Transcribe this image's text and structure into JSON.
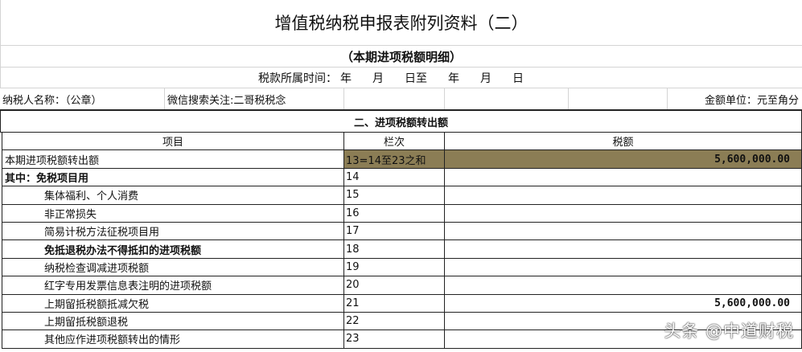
{
  "title": "增值税纳税申报表附列资料（二）",
  "subtitle": "（本期进项税额明细）",
  "period": {
    "label": "税款所属时间：",
    "parts": [
      "年",
      "月",
      "日至",
      "年",
      "月",
      "日"
    ]
  },
  "taxpayer": {
    "name_label": "纳税人名称：（公章）",
    "note": "微信搜索关注:二哥税税念",
    "unit": "金额单位：元至角分"
  },
  "section": "二、进项税额转出额",
  "headers": [
    "项目",
    "栏次",
    "税额"
  ],
  "rows": [
    {
      "item": "本期进项税额转出额",
      "line": "13=14至23之和",
      "amount": "5,600,000.00"
    },
    {
      "item": "其中：免税项目用",
      "line": "14",
      "amount": ""
    },
    {
      "item": "集体福利、个人消费",
      "line": "15",
      "amount": ""
    },
    {
      "item": "非正常损失",
      "line": "16",
      "amount": ""
    },
    {
      "item": "简易计税方法征税项目用",
      "line": "17",
      "amount": ""
    },
    {
      "item": "免抵退税办法不得抵扣的进项税额",
      "line": "18",
      "amount": ""
    },
    {
      "item": "纳税检查调减进项税额",
      "line": "19",
      "amount": ""
    },
    {
      "item": "红字专用发票信息表注明的进项税额",
      "line": "20",
      "amount": ""
    },
    {
      "item": "上期留抵税额抵减欠税",
      "line": "21",
      "amount": "5,600,000.00"
    },
    {
      "item": "上期留抵税额退税",
      "line": "22",
      "amount": ""
    },
    {
      "item": "其他应作进项税额转出的情形",
      "line": "23",
      "amount": ""
    }
  ],
  "highlight_color": "#8b7d55",
  "watermark": "头条 @中道财税"
}
